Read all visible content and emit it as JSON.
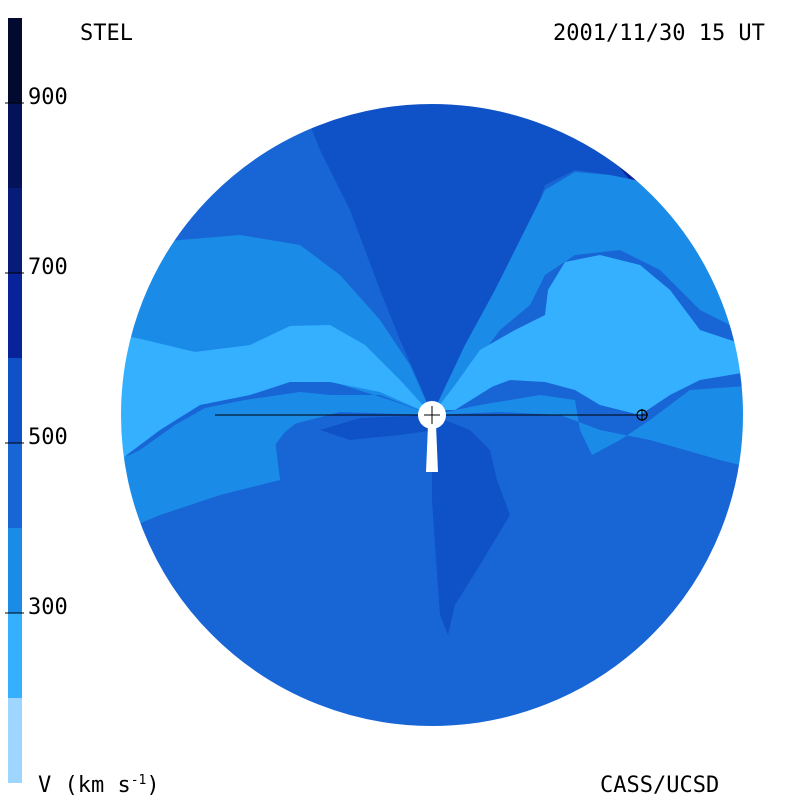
{
  "header": {
    "left": "STEL",
    "right": "2001/11/30 15 UT"
  },
  "footer": {
    "left_prefix": "V (km s",
    "left_exponent": "-1",
    "left_suffix": ")",
    "right": "CASS/UCSD"
  },
  "colorbar": {
    "vmin": 100,
    "vmax": 1000,
    "ticks": [
      {
        "value": 900,
        "label": "900"
      },
      {
        "value": 700,
        "label": "700"
      },
      {
        "value": 500,
        "label": "500"
      },
      {
        "value": 300,
        "label": "300"
      }
    ],
    "bands": [
      {
        "from": 100,
        "to": 200,
        "color": "#9ed6ff"
      },
      {
        "from": 200,
        "to": 300,
        "color": "#35b0ff"
      },
      {
        "from": 300,
        "to": 400,
        "color": "#1a8ce8"
      },
      {
        "from": 400,
        "to": 500,
        "color": "#1866d6"
      },
      {
        "from": 500,
        "to": 600,
        "color": "#0f52c8"
      },
      {
        "from": 600,
        "to": 700,
        "color": "#08239a"
      },
      {
        "from": 700,
        "to": 800,
        "color": "#061c78"
      },
      {
        "from": 800,
        "to": 900,
        "color": "#04125a"
      },
      {
        "from": 900,
        "to": 1000,
        "color": "#020a30"
      }
    ]
  },
  "chart_data": {
    "type": "heatmap",
    "title": "",
    "quantity": "solar wind speed V (km s-1)",
    "colormap_range": [
      100,
      1000
    ],
    "regions": [
      {
        "name": "north polar fast wind",
        "approx_speed": 650
      },
      {
        "name": "mid-latitude flanks",
        "approx_speed": 550
      },
      {
        "name": "equatorial slow wind band",
        "approx_speed": 250
      },
      {
        "name": "south hemisphere",
        "approx_speed": 550
      },
      {
        "name": "south central streamer",
        "approx_speed": 650
      }
    ],
    "markers": [
      "sun",
      "earth"
    ]
  },
  "colors": {
    "v150": "#9ed6ff",
    "v250": "#35b0ff",
    "v350": "#1a8ce8",
    "v450": "#1866d6",
    "v550": "#0f52c8",
    "v650": "#08239a",
    "background": "#ffffff",
    "foreground": "#000000"
  }
}
